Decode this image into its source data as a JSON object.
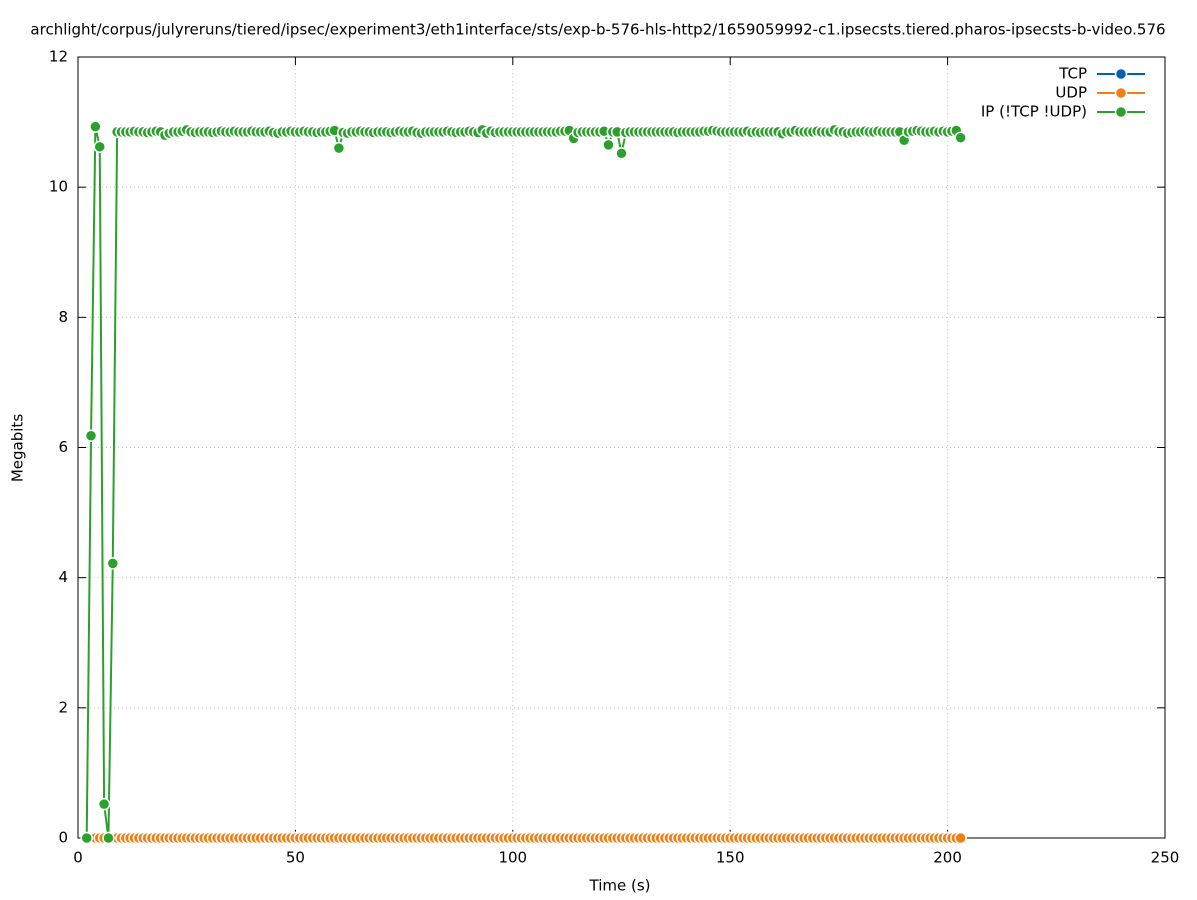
{
  "chart_data": {
    "type": "line",
    "title": "archlight/corpus/julyreruns/tiered/ipsec/experiment3/eth1interface/sts/exp-b-576-hls-http2/1659059992-c1.ipsecsts.tiered.pharos-ipsecsts-b-video.576",
    "x_label": "Time (s)",
    "y_label": "Megabits",
    "xlim": [
      0,
      250
    ],
    "xticks": [
      0,
      50,
      100,
      150,
      200,
      250
    ],
    "ylim": [
      0,
      12
    ],
    "yticks": [
      0,
      2,
      4,
      6,
      8,
      10,
      12
    ],
    "grid": true,
    "legend": "top-right",
    "x": [
      2,
      3,
      4,
      5,
      6,
      7,
      8,
      9,
      10,
      11,
      12,
      13,
      14,
      15,
      16,
      17,
      18,
      19,
      20,
      21,
      22,
      23,
      24,
      25,
      26,
      27,
      28,
      29,
      30,
      31,
      32,
      33,
      34,
      35,
      36,
      37,
      38,
      39,
      40,
      41,
      42,
      43,
      44,
      45,
      46,
      47,
      48,
      49,
      50,
      51,
      52,
      53,
      54,
      55,
      56,
      57,
      58,
      59,
      60,
      61,
      62,
      63,
      64,
      65,
      66,
      67,
      68,
      69,
      70,
      71,
      72,
      73,
      74,
      75,
      76,
      77,
      78,
      79,
      80,
      81,
      82,
      83,
      84,
      85,
      86,
      87,
      88,
      89,
      90,
      91,
      92,
      93,
      94,
      95,
      96,
      97,
      98,
      99,
      100,
      101,
      102,
      103,
      104,
      105,
      106,
      107,
      108,
      109,
      110,
      111,
      112,
      113,
      114,
      115,
      116,
      117,
      118,
      119,
      120,
      121,
      122,
      123,
      124,
      125,
      126,
      127,
      128,
      129,
      130,
      131,
      132,
      133,
      134,
      135,
      136,
      137,
      138,
      139,
      140,
      141,
      142,
      143,
      144,
      145,
      146,
      147,
      148,
      149,
      150,
      151,
      152,
      153,
      154,
      155,
      156,
      157,
      158,
      159,
      160,
      161,
      162,
      163,
      164,
      165,
      166,
      167,
      168,
      169,
      170,
      171,
      172,
      173,
      174,
      175,
      176,
      177,
      178,
      179,
      180,
      181,
      182,
      183,
      184,
      185,
      186,
      187,
      188,
      189,
      190,
      191,
      192,
      193,
      194,
      195,
      196,
      197,
      198,
      199,
      200,
      201,
      202,
      203
    ],
    "series": [
      {
        "name": "TCP",
        "color": "#0060ad",
        "values": [
          0,
          0,
          0,
          0,
          0,
          0,
          0,
          0,
          0,
          0,
          0,
          0,
          0,
          0,
          0,
          0,
          0,
          0,
          0,
          0,
          0,
          0,
          0,
          0,
          0,
          0,
          0,
          0,
          0,
          0,
          0,
          0,
          0,
          0,
          0,
          0,
          0,
          0,
          0,
          0,
          0,
          0,
          0,
          0,
          0,
          0,
          0,
          0,
          0,
          0,
          0,
          0,
          0,
          0,
          0,
          0,
          0,
          0,
          0,
          0,
          0,
          0,
          0,
          0,
          0,
          0,
          0,
          0,
          0,
          0,
          0,
          0,
          0,
          0,
          0,
          0,
          0,
          0,
          0,
          0,
          0,
          0,
          0,
          0,
          0,
          0,
          0,
          0,
          0,
          0,
          0,
          0,
          0,
          0,
          0,
          0,
          0,
          0,
          0,
          0,
          0,
          0,
          0,
          0,
          0,
          0,
          0,
          0,
          0,
          0,
          0,
          0,
          0,
          0,
          0,
          0,
          0,
          0,
          0,
          0,
          0,
          0,
          0,
          0,
          0,
          0,
          0,
          0,
          0,
          0,
          0,
          0,
          0,
          0,
          0,
          0,
          0,
          0,
          0,
          0,
          0,
          0,
          0,
          0,
          0,
          0,
          0,
          0,
          0,
          0,
          0,
          0,
          0,
          0,
          0,
          0,
          0,
          0,
          0,
          0,
          0,
          0,
          0,
          0,
          0,
          0,
          0,
          0,
          0,
          0,
          0,
          0,
          0,
          0,
          0,
          0,
          0,
          0,
          0,
          0,
          0,
          0,
          0,
          0,
          0,
          0,
          0,
          0,
          0,
          0,
          0,
          0,
          0,
          0,
          0,
          0,
          0,
          0,
          0,
          0,
          0,
          0
        ]
      },
      {
        "name": "UDP",
        "color": "#f07e14",
        "values": [
          0,
          0,
          0,
          0,
          0,
          0,
          0,
          0,
          0,
          0,
          0,
          0,
          0,
          0,
          0,
          0,
          0,
          0,
          0,
          0,
          0,
          0,
          0,
          0,
          0,
          0,
          0,
          0,
          0,
          0,
          0,
          0,
          0,
          0,
          0,
          0,
          0,
          0,
          0,
          0,
          0,
          0,
          0,
          0,
          0,
          0,
          0,
          0,
          0,
          0,
          0,
          0,
          0,
          0,
          0,
          0,
          0,
          0,
          0,
          0,
          0,
          0,
          0,
          0,
          0,
          0,
          0,
          0,
          0,
          0,
          0,
          0,
          0,
          0,
          0,
          0,
          0,
          0,
          0,
          0,
          0,
          0,
          0,
          0,
          0,
          0,
          0,
          0,
          0,
          0,
          0,
          0,
          0,
          0,
          0,
          0,
          0,
          0,
          0,
          0,
          0,
          0,
          0,
          0,
          0,
          0,
          0,
          0,
          0,
          0,
          0,
          0,
          0,
          0,
          0,
          0,
          0,
          0,
          0,
          0,
          0,
          0,
          0,
          0,
          0,
          0,
          0,
          0,
          0,
          0,
          0,
          0,
          0,
          0,
          0,
          0,
          0,
          0,
          0,
          0,
          0,
          0,
          0,
          0,
          0,
          0,
          0,
          0,
          0,
          0,
          0,
          0,
          0,
          0,
          0,
          0,
          0,
          0,
          0,
          0,
          0,
          0,
          0,
          0,
          0,
          0,
          0,
          0,
          0,
          0,
          0,
          0,
          0,
          0,
          0,
          0,
          0,
          0,
          0,
          0,
          0,
          0,
          0,
          0,
          0,
          0,
          0,
          0,
          0,
          0,
          0,
          0,
          0,
          0,
          0,
          0,
          0,
          0,
          0,
          0,
          0,
          0
        ]
      },
      {
        "name": "IP (!TCP  !UDP)",
        "color": "#2ca02c",
        "values": [
          0,
          6.18,
          10.93,
          10.62,
          0.52,
          0,
          4.22,
          10.85,
          10.85,
          10.85,
          10.85,
          10.86,
          10.85,
          10.85,
          10.84,
          10.85,
          10.86,
          10.85,
          10.8,
          10.83,
          10.85,
          10.85,
          10.86,
          10.88,
          10.85,
          10.84,
          10.85,
          10.85,
          10.85,
          10.84,
          10.85,
          10.86,
          10.85,
          10.85,
          10.86,
          10.85,
          10.85,
          10.85,
          10.86,
          10.85,
          10.85,
          10.85,
          10.86,
          10.84,
          10.83,
          10.85,
          10.85,
          10.86,
          10.85,
          10.85,
          10.86,
          10.85,
          10.85,
          10.84,
          10.85,
          10.85,
          10.86,
          10.87,
          10.6,
          10.84,
          10.83,
          10.85,
          10.85,
          10.86,
          10.85,
          10.85,
          10.84,
          10.85,
          10.85,
          10.85,
          10.84,
          10.85,
          10.86,
          10.85,
          10.85,
          10.86,
          10.84,
          10.83,
          10.85,
          10.85,
          10.85,
          10.85,
          10.85,
          10.86,
          10.85,
          10.84,
          10.85,
          10.85,
          10.86,
          10.85,
          10.84,
          10.88,
          10.83,
          10.86,
          10.84,
          10.85,
          10.85,
          10.85,
          10.85,
          10.85,
          10.85,
          10.85,
          10.85,
          10.85,
          10.85,
          10.85,
          10.85,
          10.85,
          10.85,
          10.86,
          10.86,
          10.87,
          10.75,
          10.84,
          10.85,
          10.85,
          10.85,
          10.85,
          10.85,
          10.86,
          10.65,
          10.85,
          10.85,
          10.52,
          10.84,
          10.85,
          10.85,
          10.85,
          10.85,
          10.85,
          10.85,
          10.85,
          10.85,
          10.85,
          10.85,
          10.85,
          10.84,
          10.85,
          10.85,
          10.85,
          10.85,
          10.85,
          10.86,
          10.86,
          10.87,
          10.86,
          10.85,
          10.85,
          10.85,
          10.85,
          10.85,
          10.85,
          10.86,
          10.84,
          10.85,
          10.84,
          10.85,
          10.85,
          10.85,
          10.85,
          10.82,
          10.85,
          10.85,
          10.87,
          10.85,
          10.85,
          10.85,
          10.85,
          10.86,
          10.85,
          10.85,
          10.85,
          10.88,
          10.85,
          10.85,
          10.83,
          10.84,
          10.85,
          10.85,
          10.86,
          10.85,
          10.85,
          10.86,
          10.85,
          10.85,
          10.85,
          10.85,
          10.85,
          10.72,
          10.85,
          10.86,
          10.87,
          10.86,
          10.85,
          10.85,
          10.86,
          10.85,
          10.86,
          10.85,
          10.86,
          10.87,
          10.76
        ]
      }
    ]
  }
}
